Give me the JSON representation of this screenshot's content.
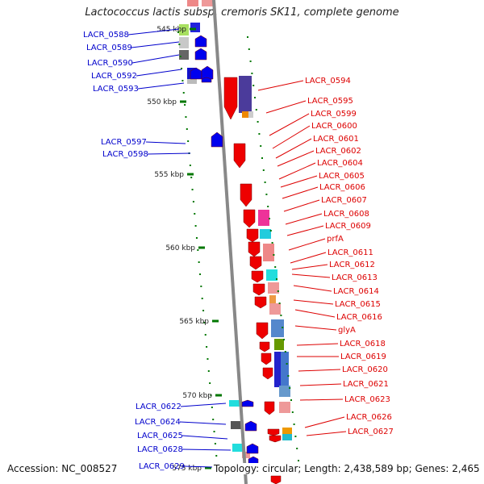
{
  "title": "Lactococcus lactis subsp. cremoris SK11, complete genome",
  "footer": {
    "accession": "Accession: NC_008527",
    "summary": "Topology: circular; Length: 2,438,589 bp; Genes: 2,465"
  },
  "ticks": [
    {
      "label": "545 kbp"
    },
    {
      "label": "550 kbp"
    },
    {
      "label": "555 kbp"
    },
    {
      "label": "560 kbp"
    },
    {
      "label": "565 kbp"
    },
    {
      "label": "570 kbp"
    },
    {
      "label": "575 kbp"
    }
  ],
  "reverse_genes": [
    "LACR_0588",
    "LACR_0589",
    "LACR_0590",
    "LACR_0592",
    "LACR_0593",
    "LACR_0597",
    "LACR_0598",
    "LACR_0622",
    "LACR_0624",
    "LACR_0625",
    "LACR_0628",
    "LACR_0629"
  ],
  "forward_genes": [
    "LACR_0594",
    "LACR_0595",
    "LACR_0599",
    "LACR_0600",
    "LACR_0601",
    "LACR_0602",
    "LACR_0604",
    "LACR_0605",
    "LACR_0606",
    "LACR_0607",
    "LACR_0608",
    "LACR_0609",
    "prfA",
    "LACR_0611",
    "LACR_0612",
    "LACR_0613",
    "LACR_0614",
    "LACR_0615",
    "LACR_0616",
    "glyA",
    "LACR_0618",
    "LACR_0619",
    "LACR_0620",
    "LACR_0621",
    "LACR_0623",
    "LACR_0626",
    "LACR_0627"
  ],
  "colors": {
    "forward_label": "#dd0000",
    "reverse_label": "#0000cc",
    "forward_gene": "#ee0000",
    "reverse_gene": "#0000ee",
    "backbone": "#888888",
    "tick": "#007700"
  }
}
